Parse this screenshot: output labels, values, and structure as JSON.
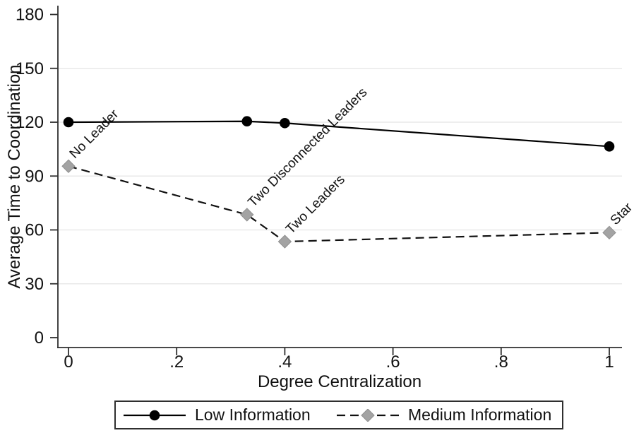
{
  "chart_data": {
    "type": "line",
    "title": "",
    "xlabel": "Degree Centralization",
    "ylabel": "Average Time to Coordination",
    "xlim": [
      -0.02,
      1.02
    ],
    "ylim": [
      0,
      185
    ],
    "axis_color": "#2f2f2f",
    "text_color": "#111111",
    "grid": {
      "y_values": [
        30,
        60,
        90,
        120,
        150
      ],
      "color": "#e9e9e9"
    },
    "x_ticks": [
      {
        "value": 0,
        "label": "0"
      },
      {
        "value": 0.2,
        "label": ".2"
      },
      {
        "value": 0.4,
        "label": ".4"
      },
      {
        "value": 0.6,
        "label": ".6"
      },
      {
        "value": 0.8,
        "label": ".8"
      },
      {
        "value": 1,
        "label": "1"
      }
    ],
    "y_ticks": [
      {
        "value": 0,
        "label": "0"
      },
      {
        "value": 30,
        "label": "30"
      },
      {
        "value": 60,
        "label": "60"
      },
      {
        "value": 90,
        "label": "90"
      },
      {
        "value": 120,
        "label": "120"
      },
      {
        "value": 150,
        "label": "150"
      },
      {
        "value": 180,
        "label": "180"
      }
    ],
    "series": [
      {
        "name": "Low Information",
        "line_style": "solid",
        "marker": "circle",
        "line_color": "#000000",
        "marker_color": "#000000",
        "points": [
          {
            "x": 0,
            "y": 120
          },
          {
            "x": 0.33,
            "y": 120.5
          },
          {
            "x": 0.4,
            "y": 119.5
          },
          {
            "x": 1,
            "y": 106.5
          }
        ]
      },
      {
        "name": "Medium Information",
        "line_style": "dashed",
        "marker": "diamond",
        "line_color": "#111111",
        "marker_color": "#a3a3a3",
        "points": [
          {
            "x": 0,
            "y": 95.5
          },
          {
            "x": 0.33,
            "y": 68.5
          },
          {
            "x": 0.4,
            "y": 53.5
          },
          {
            "x": 1,
            "y": 58.5
          }
        ]
      }
    ],
    "annotations": [
      {
        "label": "No Leader",
        "x": 0,
        "y": 95.5
      },
      {
        "label": "Two Disconnected Leaders",
        "x": 0.33,
        "y": 68.5
      },
      {
        "label": "Two Leaders",
        "x": 0.4,
        "y": 53.5
      },
      {
        "label": "Star",
        "x": 1,
        "y": 58.5
      }
    ],
    "legend": {
      "position": "bottom-center"
    }
  }
}
